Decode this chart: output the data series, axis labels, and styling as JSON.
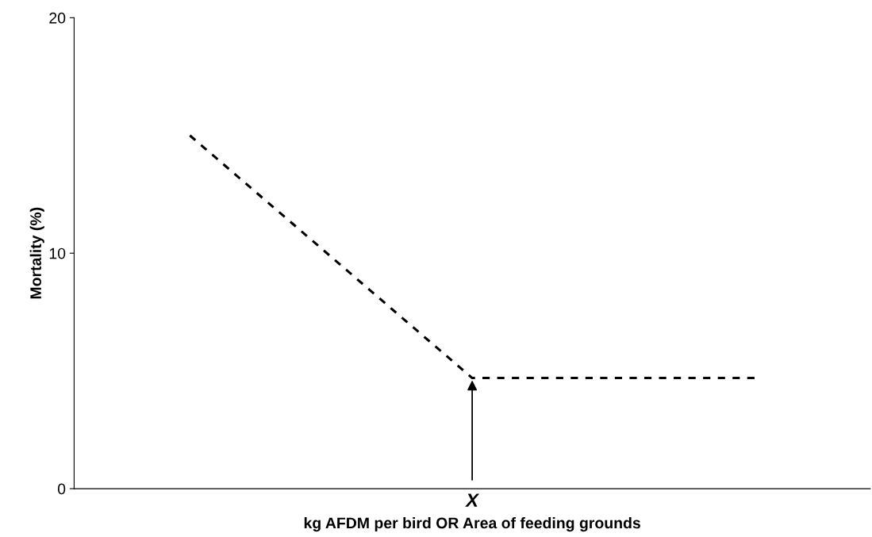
{
  "chart_data": {
    "type": "line",
    "xlabel": "kg AFDM per bird OR Area of feeding grounds",
    "ylabel": "Mortality (%)",
    "categories": [
      null,
      "X",
      null
    ],
    "series": [
      {
        "color": "#000000",
        "values": [
          15,
          4.7,
          4.7
        ]
      }
    ],
    "ylim": [
      0,
      20
    ],
    "yticks": [
      0,
      10,
      20
    ],
    "grid": false,
    "legend": false,
    "marker": "none",
    "line_style": "dashed"
  }
}
